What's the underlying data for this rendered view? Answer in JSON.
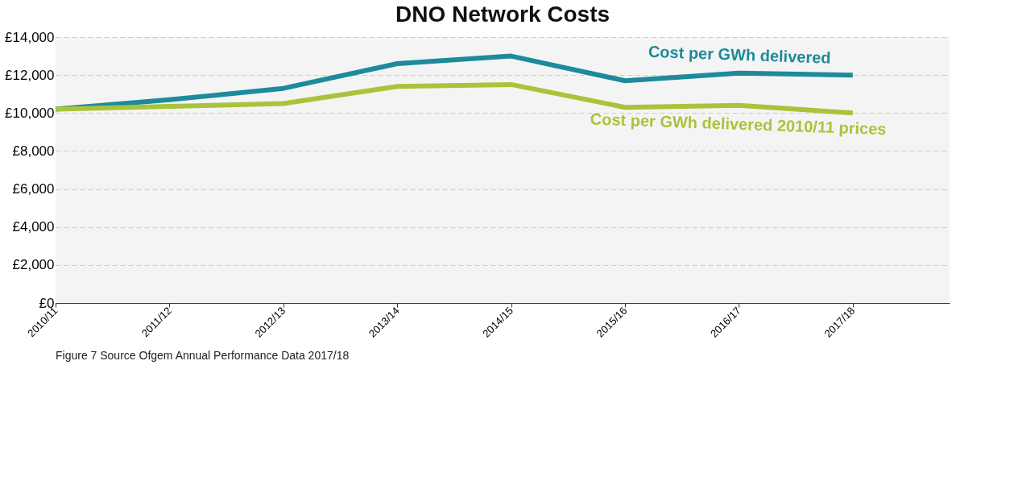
{
  "chart_data": {
    "type": "line",
    "title": "DNO Network Costs",
    "categories": [
      "2010/11",
      "2011/12",
      "2012/13",
      "2013/14",
      "2014/15",
      "2015/16",
      "2016/17",
      "2017/18"
    ],
    "series": [
      {
        "name": "Cost per GWh delivered",
        "color": "#1e8a9a",
        "values": [
          10200,
          10700,
          11300,
          12600,
          13000,
          11700,
          12100,
          12000
        ]
      },
      {
        "name": "Cost per GWh delivered 2010/11 prices",
        "color": "#a8c43a",
        "values": [
          10200,
          10350,
          10500,
          11400,
          11500,
          10300,
          10400,
          10000
        ]
      }
    ],
    "ylim": [
      0,
      14000
    ],
    "yticks": [
      {
        "value": 0,
        "label": "£0"
      },
      {
        "value": 2000,
        "label": "£2,000"
      },
      {
        "value": 4000,
        "label": "£4,000"
      },
      {
        "value": 6000,
        "label": "£6,000"
      },
      {
        "value": 8000,
        "label": "£8,000"
      },
      {
        "value": 10000,
        "label": "£10,000"
      },
      {
        "value": 12000,
        "label": "£12,000"
      },
      {
        "value": 14000,
        "label": "£14,000"
      }
    ],
    "grid": "y",
    "legend": false,
    "marker": "none",
    "line_style": "solid",
    "annotations": [
      "Figure 7 Source Ofgem Annual Performance Data 2017/18"
    ]
  }
}
